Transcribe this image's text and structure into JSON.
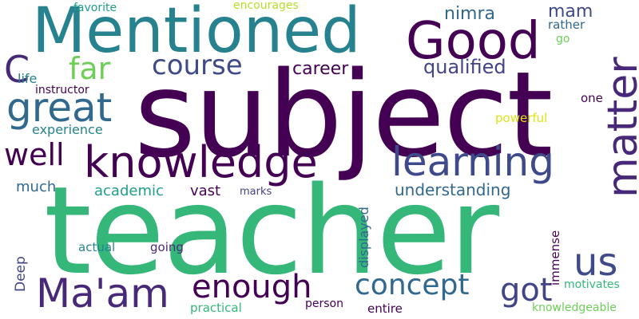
{
  "palette": {
    "dark_purple": "#440154",
    "indigo": "#482878",
    "violet_blue": "#414487",
    "blue": "#3e4a89",
    "steel_blue": "#31688e",
    "teal": "#26828e",
    "teal_green": "#1f9e89",
    "green": "#35b779",
    "light_green": "#6ece58",
    "lime": "#b5de2b",
    "yellow": "#dde318"
  },
  "words": [
    "subject",
    "teacher",
    "Mentioned",
    "Good",
    "matter",
    "knowledge",
    "learning",
    "great",
    "well",
    "course",
    "far",
    "C",
    "Ma'am",
    "enough",
    "concept",
    "got",
    "us",
    "qualified",
    "career",
    "nimra",
    "mam",
    "rather",
    "go",
    "favorite",
    "encourages",
    "life",
    "instructor",
    "experience",
    "one",
    "powerful",
    "much",
    "academic",
    "vast",
    "marks",
    "understanding",
    "displayed",
    "Deep",
    "immense",
    "actual",
    "going",
    "motivates",
    "practical",
    "person",
    "entire",
    "knowledgeable"
  ]
}
